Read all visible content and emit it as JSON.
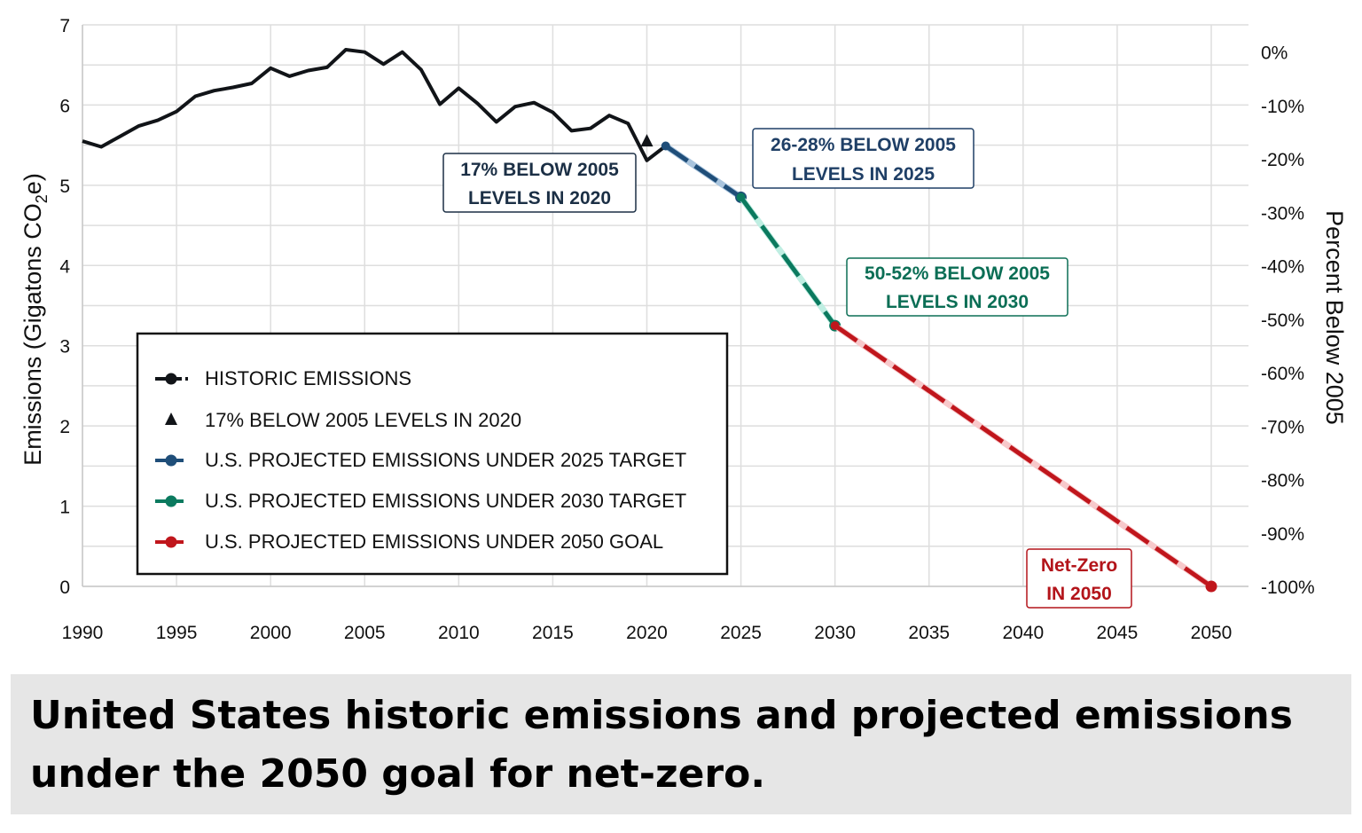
{
  "caption": "United States historic emissions and projected emissions under the 2050 goal for net-zero.",
  "chart_data": {
    "type": "line",
    "xlabel": "",
    "ylabel": "Emissions (Gigatons CO2e)",
    "ylabel_parts": {
      "pre": "Emissions (Gigatons CO",
      "sub": "2",
      "post": "e)"
    },
    "y2label": "Percent Below 2005",
    "xlim": [
      1990,
      2050
    ],
    "ylim": [
      0,
      7
    ],
    "xticks": [
      "1990",
      "1995",
      "2000",
      "2005",
      "2010",
      "2015",
      "2020",
      "2025",
      "2030",
      "2035",
      "2040",
      "2045",
      "2050"
    ],
    "yticks": [
      "0",
      "1",
      "2",
      "3",
      "4",
      "5",
      "6",
      "7"
    ],
    "y2ticks": [
      "0%",
      "-10%",
      "-20%",
      "-30%",
      "-40%",
      "-50%",
      "-60%",
      "-70%",
      "-80%",
      "-90%",
      "-100%"
    ],
    "grid": true,
    "legend_position": "bottom-left",
    "series": [
      {
        "name": "HISTORIC EMISSIONS",
        "color": "#111418",
        "style": "solid",
        "marker": "none",
        "x": [
          1990,
          1991,
          1992,
          1993,
          1994,
          1995,
          1996,
          1997,
          1998,
          1999,
          2000,
          2001,
          2002,
          2003,
          2004,
          2005,
          2006,
          2007,
          2008,
          2009,
          2010,
          2011,
          2012,
          2013,
          2014,
          2015,
          2016,
          2017,
          2018,
          2019,
          2020,
          2021
        ],
        "values": [
          5.55,
          5.48,
          5.61,
          5.74,
          5.81,
          5.92,
          6.11,
          6.18,
          6.22,
          6.27,
          6.46,
          6.36,
          6.43,
          6.47,
          6.69,
          6.66,
          6.51,
          6.66,
          6.44,
          6.01,
          6.21,
          6.02,
          5.79,
          5.98,
          6.03,
          5.91,
          5.68,
          5.71,
          5.87,
          5.77,
          5.31,
          5.49
        ]
      },
      {
        "name": "17% BELOW 2005 LEVELS IN 2020",
        "color": "#111418",
        "style": "marker",
        "marker": "triangle",
        "x": [
          2020
        ],
        "values": [
          5.55
        ]
      },
      {
        "name": "U.S. PROJECTED EMISSIONS UNDER 2025 TARGET",
        "color": "#1f4e79",
        "style": "dashed",
        "marker": "circle",
        "x": [
          2021,
          2025
        ],
        "values": [
          5.49,
          4.85
        ]
      },
      {
        "name": "U.S. PROJECTED EMISSIONS UNDER 2030 TARGET",
        "color": "#0b7a5f",
        "style": "dashed",
        "marker": "circle",
        "x": [
          2025,
          2030
        ],
        "values": [
          4.85,
          3.25
        ]
      },
      {
        "name": "U.S. PROJECTED EMISSIONS UNDER 2050 GOAL",
        "color": "#c0161c",
        "style": "dashed",
        "marker": "circle",
        "x": [
          2030,
          2050
        ],
        "values": [
          3.25,
          0
        ]
      }
    ],
    "annotations": [
      {
        "lines": [
          "17% BELOW 2005",
          "LEVELS IN 2020"
        ],
        "color": "#1b2f45"
      },
      {
        "lines": [
          "26-28% BELOW 2005",
          "LEVELS IN 2025"
        ],
        "color": "#1f3f66"
      },
      {
        "lines": [
          "50-52% BELOW 2005",
          "LEVELS IN 2030"
        ],
        "color": "#0b6e55"
      },
      {
        "lines": [
          "Net-Zero",
          "IN 2050"
        ],
        "color": "#b3141a"
      }
    ]
  }
}
